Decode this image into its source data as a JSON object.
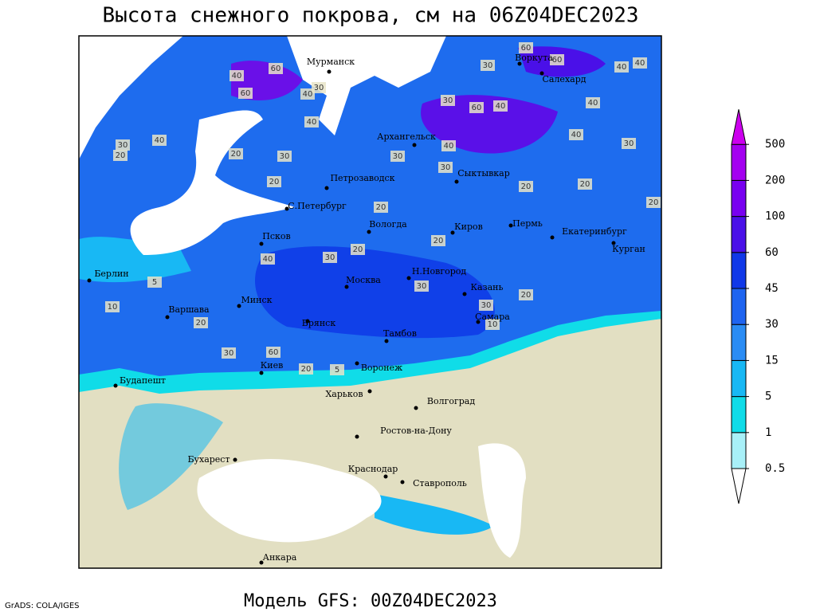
{
  "title": "Высота снежного покрова, см на 06Z04DEC2023",
  "footer": "Модель GFS: 00Z04DEC2023",
  "credit": "GrADS: COLA/IGES",
  "cities": [
    "Мурманск",
    "Воркута",
    "Салехард",
    "Архангельск",
    "Петрозаводск",
    "Сыктывкар",
    "С.Петербург",
    "Псков",
    "Вологда",
    "Киров",
    "Пермь",
    "Екатеринбург",
    "Курган",
    "Берлин",
    "Н.Новгород",
    "Москва",
    "Казань",
    "Минск",
    "Варшава",
    "Самара",
    "Брянск",
    "Тамбов",
    "Киев",
    "Воронеж",
    "Будапешт",
    "Харьков",
    "Волгоград",
    "Ростов-на-Дону",
    "Бухарест",
    "Краснодар",
    "Ставрополь",
    "Анкара"
  ],
  "contour_labels": [
    40,
    60,
    30,
    40,
    60,
    40,
    30,
    40,
    40,
    30,
    60,
    60,
    40,
    40,
    60,
    40,
    30,
    30,
    20,
    20,
    30,
    20,
    20,
    40,
    30,
    20,
    20,
    20,
    40,
    30,
    5,
    10,
    20,
    30,
    60,
    20,
    5,
    40,
    30,
    30,
    20,
    20,
    30,
    10,
    20
  ],
  "legend": {
    "under_color": "#ffffff",
    "over_color": "#cc00ee",
    "levels": [
      {
        "value": 0.5,
        "color": "#a8f0f8"
      },
      {
        "value": 1,
        "color": "#10dce8"
      },
      {
        "value": 5,
        "color": "#18b8f4"
      },
      {
        "value": 15,
        "color": "#2a8cf4"
      },
      {
        "value": 30,
        "color": "#1e64f0"
      },
      {
        "value": 45,
        "color": "#1038e8"
      },
      {
        "value": 60,
        "color": "#4a10e8"
      },
      {
        "value": 100,
        "color": "#7800f0"
      },
      {
        "value": 200,
        "color": "#a400f0"
      },
      {
        "value": 500,
        "color": "#cc00ee"
      }
    ]
  }
}
